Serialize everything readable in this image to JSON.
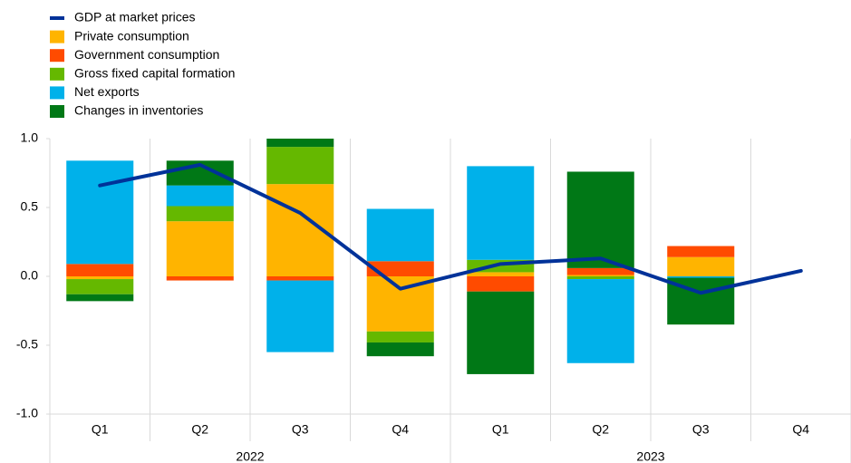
{
  "chart_data": {
    "type": "stacked-bar-line",
    "categories": [
      "Q1",
      "Q2",
      "Q3",
      "Q4",
      "Q1",
      "Q2",
      "Q3",
      "Q4"
    ],
    "years": [
      "2022",
      "2023"
    ],
    "series": [
      {
        "name": "Private consumption",
        "color": "#ffb400",
        "values": [
          -0.02,
          0.4,
          0.67,
          -0.4,
          0.03,
          0.01,
          0.14,
          null
        ]
      },
      {
        "name": "Government consumption",
        "color": "#ff4b00",
        "values": [
          0.09,
          -0.03,
          -0.03,
          0.11,
          -0.11,
          0.05,
          0.08,
          null
        ]
      },
      {
        "name": "Gross fixed capital formation",
        "color": "#65b800",
        "values": [
          -0.11,
          0.11,
          0.27,
          -0.08,
          0.09,
          -0.02,
          0.0,
          null
        ]
      },
      {
        "name": "Net exports",
        "color": "#00b1ea",
        "values": [
          0.75,
          0.15,
          -0.52,
          0.38,
          0.68,
          -0.61,
          -0.01,
          null
        ]
      },
      {
        "name": "Changes in inventories",
        "color": "#007816",
        "values": [
          -0.05,
          0.18,
          0.06,
          -0.1,
          -0.6,
          0.7,
          -0.34,
          null
        ]
      }
    ],
    "line": {
      "name": "GDP at market prices",
      "color": "#003299",
      "values": [
        0.66,
        0.81,
        0.46,
        -0.09,
        0.09,
        0.13,
        -0.12,
        0.04
      ]
    },
    "ylim": [
      -1.0,
      1.0
    ],
    "yticks": [
      {
        "value": 1.0,
        "label": "1.0"
      },
      {
        "value": 0.5,
        "label": "0.5"
      },
      {
        "value": 0,
        "label": "0.0"
      },
      {
        "value": -0.5,
        "label": "-0.5"
      },
      {
        "value": -1.0,
        "label": "-1.0"
      }
    ],
    "legend": "top-left"
  }
}
